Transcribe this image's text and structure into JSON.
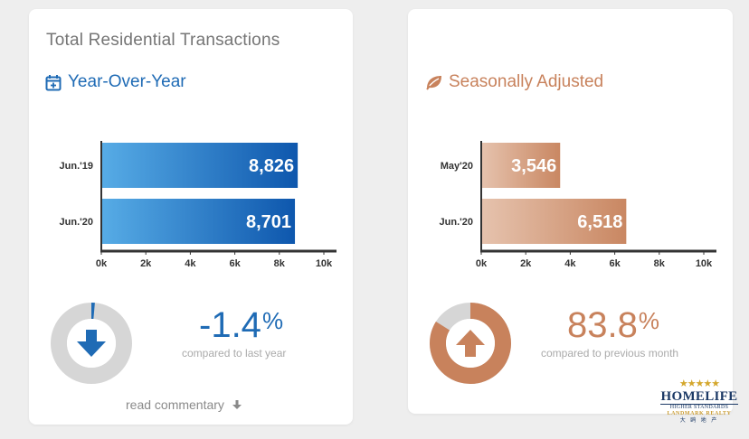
{
  "left_card": {
    "title": "Total Residential Transactions",
    "subtitle": "Year-Over-Year",
    "subtitle_icon": "calendar-plus-icon",
    "change_value": "-1.4",
    "change_unit": "%",
    "change_direction": "down",
    "donut_fraction": 0.014,
    "compare_text": "compared to last year",
    "read_commentary": "read commentary"
  },
  "right_card": {
    "subtitle": "Seasonally Adjusted",
    "subtitle_icon": "leaf-icon",
    "change_value": "83.8",
    "change_unit": "%",
    "change_direction": "up",
    "donut_fraction": 0.838,
    "compare_text": "compared to previous month"
  },
  "logo": {
    "stars": "★★★★★",
    "brand": "HOMELIFE",
    "tagline": "HIGHER STANDARDS",
    "office": "LANDMARK REALTY",
    "chinese": "大 鸥 地 产"
  },
  "colors": {
    "blue": "#1f6bb5",
    "blue_bar_light": "#57ace6",
    "blue_bar_dark": "#0e57ad",
    "copper": "#c8825c",
    "copper_bar_light": "#e6c3ae",
    "copper_bar_dark": "#c98762",
    "donut_gray": "#d6d6d6"
  },
  "chart_data": [
    {
      "type": "bar",
      "orientation": "horizontal",
      "categories": [
        "Jun.'19",
        "Jun.'20"
      ],
      "values": [
        8826,
        8701
      ],
      "value_labels": [
        "8,826",
        "8,701"
      ],
      "xlim": [
        0,
        10000
      ],
      "x_ticks": [
        "0k",
        "2k",
        "4k",
        "6k",
        "8k",
        "10k"
      ],
      "grid": false
    },
    {
      "type": "bar",
      "orientation": "horizontal",
      "categories": [
        "May'20",
        "Jun.'20"
      ],
      "values": [
        3546,
        6518
      ],
      "value_labels": [
        "3,546",
        "6,518"
      ],
      "xlim": [
        0,
        10000
      ],
      "x_ticks": [
        "0k",
        "2k",
        "4k",
        "6k",
        "8k",
        "10k"
      ],
      "grid": false
    }
  ]
}
